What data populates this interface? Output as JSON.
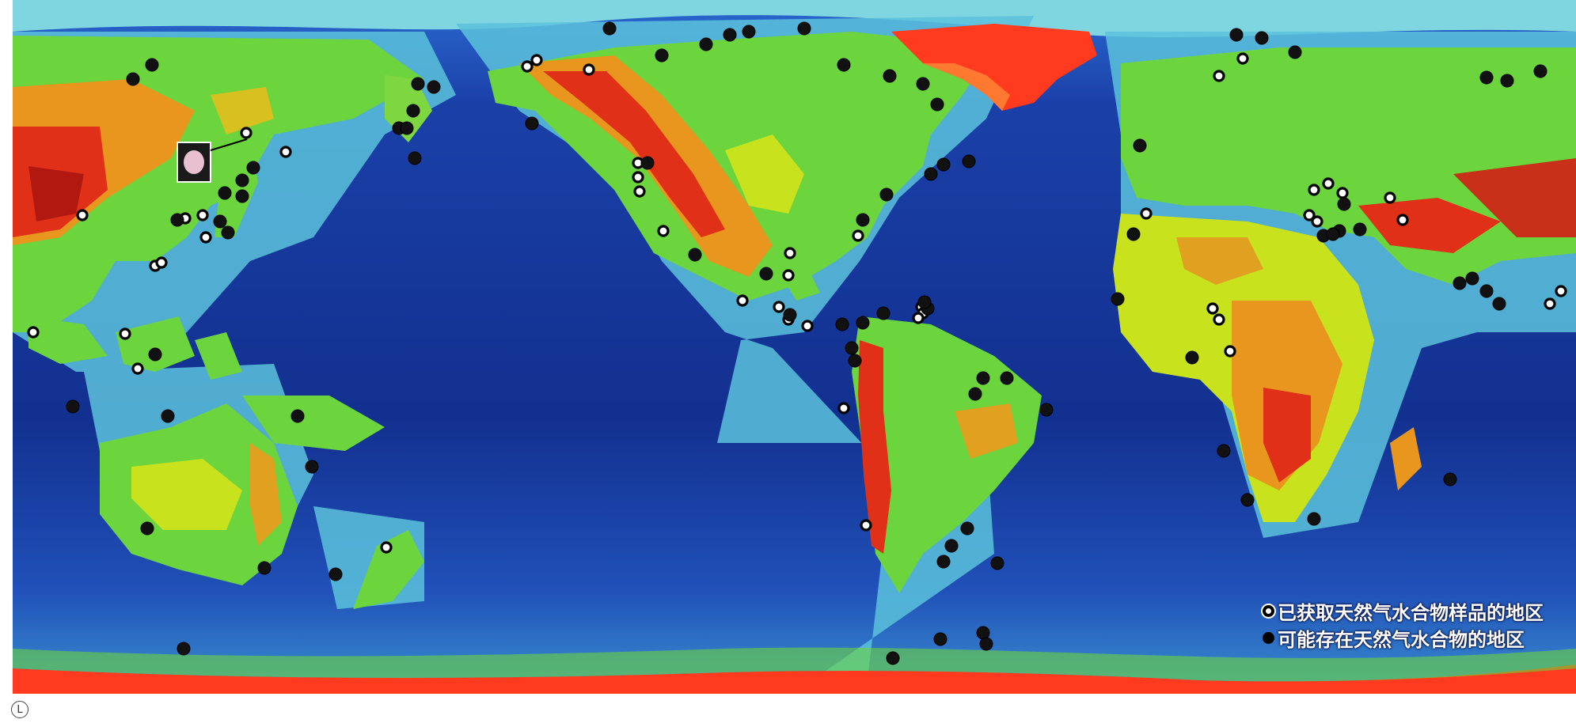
{
  "map": {
    "legend": {
      "sampled_label": "已获取天然气水合物样品的地区",
      "possible_label": "可能存在天然气水合物的地区"
    },
    "corner_mark": "L",
    "colors": {
      "deep_ocean": "#102a8c",
      "ocean": "#1e50c8",
      "shelf": "#4ab6d8",
      "shallow": "#8fe6de",
      "lowland": "#6cd43c",
      "upland": "#c8e21e",
      "highland": "#f0a020",
      "mountain": "#e03018",
      "ice_cap": "#ff3a1e",
      "sampled_marker_fill": "#ffffff",
      "marker_outline": "#000000",
      "possible_marker_fill": "#111111"
    },
    "marker_types": [
      "sampled",
      "possible"
    ]
  }
}
